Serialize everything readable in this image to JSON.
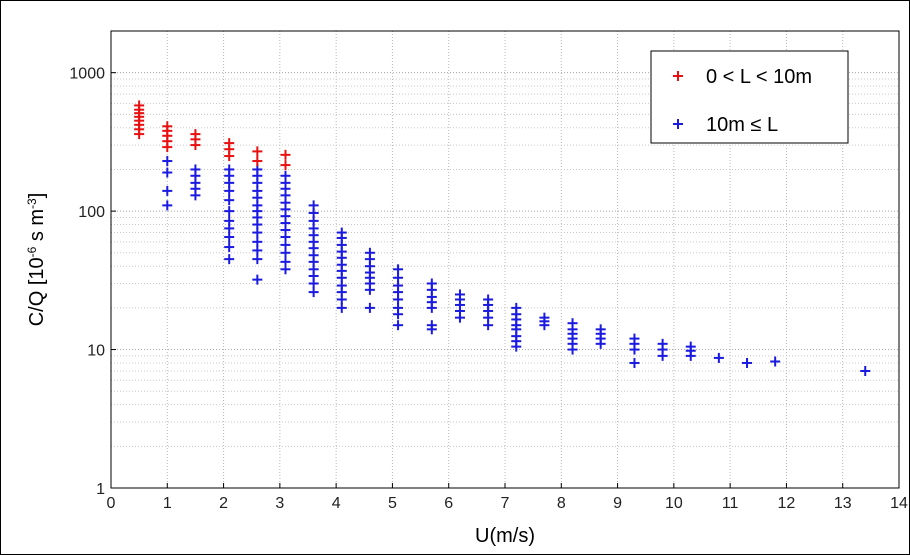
{
  "chart_data": {
    "type": "scatter",
    "marker": "plus",
    "title": "",
    "xlabel": "U(m/s)",
    "ylabel_parts": [
      "C/Q [10",
      "-6",
      " s m",
      "-3",
      "]"
    ],
    "xlim": [
      0,
      14
    ],
    "ylim": [
      1,
      2000
    ],
    "yscale": "log",
    "xticks": [
      0,
      1,
      2,
      3,
      4,
      5,
      6,
      7,
      8,
      9,
      10,
      11,
      12,
      13,
      14
    ],
    "xtick_labels": [
      "0",
      "1",
      "2",
      "3",
      "4",
      "5",
      "6",
      "7",
      "8",
      "9",
      "10",
      "11",
      "12",
      "13",
      "14"
    ],
    "yticks": [
      1,
      10,
      100,
      1000
    ],
    "ytick_labels": [
      "1",
      "10",
      "100",
      "1000"
    ],
    "grid": true,
    "legend_position": "top-right",
    "series": [
      {
        "name": "0 < L < 10m",
        "color": "#e81010",
        "points": [
          [
            0.5,
            360
          ],
          [
            0.5,
            390
          ],
          [
            0.5,
            420
          ],
          [
            0.5,
            450
          ],
          [
            0.5,
            480
          ],
          [
            0.5,
            510
          ],
          [
            0.5,
            540
          ],
          [
            0.5,
            580
          ],
          [
            1.0,
            290
          ],
          [
            1.0,
            320
          ],
          [
            1.0,
            350
          ],
          [
            1.0,
            380
          ],
          [
            1.0,
            410
          ],
          [
            1.5,
            300
          ],
          [
            1.5,
            330
          ],
          [
            1.5,
            360
          ],
          [
            2.1,
            250
          ],
          [
            2.1,
            280
          ],
          [
            2.1,
            310
          ],
          [
            2.6,
            230
          ],
          [
            2.6,
            270
          ],
          [
            3.1,
            215
          ],
          [
            3.1,
            255
          ]
        ]
      },
      {
        "name": "10m ≤ L",
        "color": "#1a1ae0",
        "points": [
          [
            1.0,
            110
          ],
          [
            1.0,
            140
          ],
          [
            1.0,
            190
          ],
          [
            1.0,
            230
          ],
          [
            1.5,
            130
          ],
          [
            1.5,
            145
          ],
          [
            1.5,
            160
          ],
          [
            1.5,
            180
          ],
          [
            1.5,
            200
          ],
          [
            2.1,
            45
          ],
          [
            2.1,
            55
          ],
          [
            2.1,
            65
          ],
          [
            2.1,
            75
          ],
          [
            2.1,
            85
          ],
          [
            2.1,
            100
          ],
          [
            2.1,
            120
          ],
          [
            2.1,
            140
          ],
          [
            2.1,
            160
          ],
          [
            2.1,
            180
          ],
          [
            2.1,
            200
          ],
          [
            2.6,
            32
          ],
          [
            2.6,
            45
          ],
          [
            2.6,
            52
          ],
          [
            2.6,
            60
          ],
          [
            2.6,
            70
          ],
          [
            2.6,
            80
          ],
          [
            2.6,
            90
          ],
          [
            2.6,
            100
          ],
          [
            2.6,
            110
          ],
          [
            2.6,
            125
          ],
          [
            2.6,
            140
          ],
          [
            2.6,
            160
          ],
          [
            2.6,
            180
          ],
          [
            2.6,
            200
          ],
          [
            3.1,
            38
          ],
          [
            3.1,
            43
          ],
          [
            3.1,
            50
          ],
          [
            3.1,
            57
          ],
          [
            3.1,
            65
          ],
          [
            3.1,
            73
          ],
          [
            3.1,
            82
          ],
          [
            3.1,
            92
          ],
          [
            3.1,
            103
          ],
          [
            3.1,
            115
          ],
          [
            3.1,
            130
          ],
          [
            3.1,
            145
          ],
          [
            3.1,
            160
          ],
          [
            3.1,
            180
          ],
          [
            3.6,
            26
          ],
          [
            3.6,
            30
          ],
          [
            3.6,
            34
          ],
          [
            3.6,
            38
          ],
          [
            3.6,
            43
          ],
          [
            3.6,
            48
          ],
          [
            3.6,
            54
          ],
          [
            3.6,
            60
          ],
          [
            3.6,
            67
          ],
          [
            3.6,
            75
          ],
          [
            3.6,
            85
          ],
          [
            3.6,
            97
          ],
          [
            3.6,
            110
          ],
          [
            4.1,
            20
          ],
          [
            4.1,
            23
          ],
          [
            4.1,
            26
          ],
          [
            4.1,
            29
          ],
          [
            4.1,
            33
          ],
          [
            4.1,
            37
          ],
          [
            4.1,
            41
          ],
          [
            4.1,
            46
          ],
          [
            4.1,
            51
          ],
          [
            4.1,
            57
          ],
          [
            4.1,
            64
          ],
          [
            4.1,
            70
          ],
          [
            4.6,
            20
          ],
          [
            4.6,
            27
          ],
          [
            4.6,
            30
          ],
          [
            4.6,
            33
          ],
          [
            4.6,
            36
          ],
          [
            4.6,
            40
          ],
          [
            4.6,
            45
          ],
          [
            4.6,
            50
          ],
          [
            5.1,
            15
          ],
          [
            5.1,
            18
          ],
          [
            5.1,
            20
          ],
          [
            5.1,
            23
          ],
          [
            5.1,
            26
          ],
          [
            5.1,
            29
          ],
          [
            5.1,
            33
          ],
          [
            5.1,
            38
          ],
          [
            5.7,
            14
          ],
          [
            5.7,
            15
          ],
          [
            5.7,
            20
          ],
          [
            5.7,
            22
          ],
          [
            5.7,
            24
          ],
          [
            5.7,
            27
          ],
          [
            5.7,
            30
          ],
          [
            6.2,
            17
          ],
          [
            6.2,
            19
          ],
          [
            6.2,
            21
          ],
          [
            6.2,
            23
          ],
          [
            6.2,
            25
          ],
          [
            6.7,
            15
          ],
          [
            6.7,
            17
          ],
          [
            6.7,
            19
          ],
          [
            6.7,
            21
          ],
          [
            6.7,
            23
          ],
          [
            7.2,
            10.5
          ],
          [
            7.2,
            11.5
          ],
          [
            7.2,
            12.5
          ],
          [
            7.2,
            14
          ],
          [
            7.2,
            15
          ],
          [
            7.2,
            16.5
          ],
          [
            7.2,
            18
          ],
          [
            7.2,
            20
          ],
          [
            7.7,
            15
          ],
          [
            7.7,
            16
          ],
          [
            7.7,
            17
          ],
          [
            8.2,
            10
          ],
          [
            8.2,
            11
          ],
          [
            8.2,
            12
          ],
          [
            8.2,
            13
          ],
          [
            8.2,
            14
          ],
          [
            8.2,
            15.5
          ],
          [
            8.7,
            11
          ],
          [
            8.7,
            12
          ],
          [
            8.7,
            13
          ],
          [
            8.7,
            14
          ],
          [
            9.3,
            8
          ],
          [
            9.3,
            10
          ],
          [
            9.3,
            11
          ],
          [
            9.3,
            12
          ],
          [
            9.8,
            9
          ],
          [
            9.8,
            10
          ],
          [
            9.8,
            11
          ],
          [
            10.3,
            9
          ],
          [
            10.3,
            9.8
          ],
          [
            10.3,
            10.5
          ],
          [
            10.8,
            8.7
          ],
          [
            11.3,
            8
          ],
          [
            11.8,
            8.2
          ],
          [
            13.4,
            7
          ]
        ]
      }
    ]
  }
}
